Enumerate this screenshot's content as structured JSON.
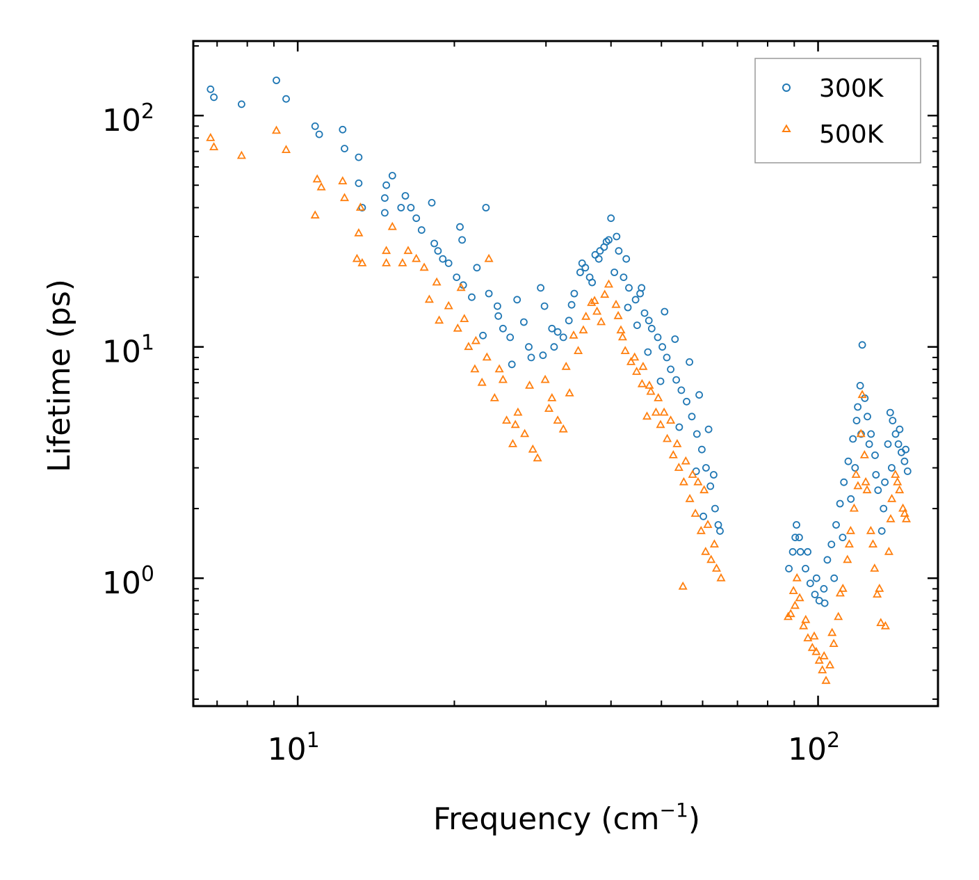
{
  "chart_data": {
    "type": "scatter",
    "title": "",
    "xlabel": "Frequency (cm",
    "xlabel_sup": "−1",
    "xlabel_end": ")",
    "ylabel": "Lifetime (ps)",
    "xscale": "log",
    "yscale": "log",
    "xlim": [
      6.3,
      170
    ],
    "ylim": [
      0.28,
      210
    ],
    "x_ticks": [
      {
        "value": 10,
        "base": "10",
        "exp": "1"
      },
      {
        "value": 100,
        "base": "10",
        "exp": "2"
      }
    ],
    "y_ticks": [
      {
        "value": 1,
        "base": "10",
        "exp": "0"
      },
      {
        "value": 10,
        "base": "10",
        "exp": "1"
      },
      {
        "value": 100,
        "base": "10",
        "exp": "2"
      }
    ],
    "legend_position": "top-right",
    "series": [
      {
        "name": "300K",
        "marker": "circle",
        "color": "#1f77b4",
        "points": [
          [
            6.8,
            130
          ],
          [
            6.9,
            120
          ],
          [
            7.8,
            112
          ],
          [
            9.1,
            142
          ],
          [
            9.5,
            118
          ],
          [
            10.8,
            90
          ],
          [
            11.0,
            83
          ],
          [
            12.2,
            87
          ],
          [
            12.3,
            72
          ],
          [
            13.1,
            66
          ],
          [
            13.1,
            51
          ],
          [
            13.3,
            40
          ],
          [
            14.8,
            50
          ],
          [
            15.2,
            55
          ],
          [
            14.7,
            44
          ],
          [
            14.7,
            38
          ],
          [
            15.8,
            40
          ],
          [
            16.1,
            45
          ],
          [
            16.5,
            40
          ],
          [
            16.9,
            36
          ],
          [
            17.3,
            32
          ],
          [
            18.1,
            42
          ],
          [
            18.3,
            28
          ],
          [
            18.6,
            26
          ],
          [
            19.0,
            24
          ],
          [
            19.5,
            23
          ],
          [
            20.2,
            20
          ],
          [
            20.5,
            33
          ],
          [
            20.7,
            29
          ],
          [
            22.1,
            22
          ],
          [
            23.0,
            40
          ],
          [
            23.3,
            17
          ],
          [
            24.2,
            15
          ],
          [
            24.8,
            12
          ],
          [
            25.6,
            11
          ],
          [
            26.4,
            16
          ],
          [
            27.8,
            10
          ],
          [
            28.1,
            9
          ],
          [
            29.3,
            18
          ],
          [
            29.8,
            15
          ],
          [
            30.8,
            12
          ],
          [
            31.1,
            10
          ],
          [
            32.4,
            11
          ],
          [
            33.2,
            13
          ],
          [
            34.0,
            17
          ],
          [
            34.9,
            21
          ],
          [
            35.7,
            22
          ],
          [
            36.4,
            20
          ],
          [
            37.3,
            25
          ],
          [
            37.9,
            24
          ],
          [
            38.8,
            27
          ],
          [
            39.6,
            29
          ],
          [
            40.0,
            36
          ],
          [
            41.0,
            30
          ],
          [
            41.4,
            26
          ],
          [
            42.3,
            20
          ],
          [
            43.3,
            18
          ],
          [
            44.6,
            16
          ],
          [
            45.5,
            17
          ],
          [
            46.4,
            14
          ],
          [
            47.3,
            13
          ],
          [
            47.9,
            12
          ],
          [
            49.2,
            11
          ],
          [
            50.2,
            10
          ],
          [
            51.2,
            9
          ],
          [
            52.1,
            8
          ],
          [
            53.4,
            7.2
          ],
          [
            54.6,
            6.5
          ],
          [
            55.9,
            5.8
          ],
          [
            57.2,
            5.0
          ],
          [
            58.5,
            4.2
          ],
          [
            59.8,
            3.6
          ],
          [
            60.9,
            3.0
          ],
          [
            62.1,
            2.5
          ],
          [
            63.4,
            2.0
          ],
          [
            64.3,
            1.7
          ],
          [
            64.8,
            1.6
          ],
          [
            87.9,
            1.1
          ],
          [
            89.4,
            1.3
          ],
          [
            90.4,
            1.5
          ],
          [
            90.9,
            1.7
          ],
          [
            92.5,
            1.3
          ],
          [
            94.6,
            1.1
          ],
          [
            96.6,
            0.95
          ],
          [
            98.6,
            0.85
          ],
          [
            100.5,
            0.8
          ],
          [
            102.6,
            0.9
          ],
          [
            104.2,
            1.2
          ],
          [
            106.1,
            1.4
          ],
          [
            108.3,
            1.7
          ],
          [
            110.2,
            2.1
          ],
          [
            112.1,
            2.6
          ],
          [
            114.3,
            3.2
          ],
          [
            116.7,
            4.0
          ],
          [
            118.6,
            4.8
          ],
          [
            119.2,
            5.5
          ],
          [
            120.5,
            6.8
          ],
          [
            121.6,
            10.2
          ],
          [
            123.0,
            6.0
          ],
          [
            124.4,
            5.0
          ],
          [
            126.4,
            4.2
          ],
          [
            128.7,
            3.4
          ],
          [
            130.4,
            2.4
          ],
          [
            132.6,
            1.6
          ],
          [
            134.4,
            2.6
          ],
          [
            136.2,
            3.8
          ],
          [
            137.6,
            5.2
          ],
          [
            139.1,
            4.8
          ],
          [
            140.9,
            4.2
          ],
          [
            142.7,
            3.8
          ],
          [
            144.6,
            3.5
          ],
          [
            146.6,
            3.2
          ],
          [
            148.6,
            2.9
          ],
          [
            60.2,
            1.85
          ],
          [
            58.3,
            2.9
          ],
          [
            54.1,
            4.5
          ],
          [
            49.8,
            7.1
          ],
          [
            47.1,
            9.5
          ],
          [
            44.9,
            12.4
          ],
          [
            43.1,
            14.8
          ],
          [
            36.8,
            19.0
          ],
          [
            33.6,
            15.2
          ],
          [
            31.6,
            11.6
          ],
          [
            29.6,
            9.2
          ],
          [
            27.2,
            12.8
          ],
          [
            25.8,
            8.4
          ],
          [
            24.3,
            13.6
          ],
          [
            22.7,
            11.2
          ],
          [
            21.6,
            16.4
          ],
          [
            20.8,
            18.5
          ],
          [
            39.2,
            28.5
          ],
          [
            35.2,
            23.0
          ],
          [
            38.1,
            26.0
          ],
          [
            42.8,
            24.0
          ],
          [
            40.6,
            21.0
          ],
          [
            45.8,
            18.0
          ],
          [
            50.7,
            14.2
          ],
          [
            53.1,
            10.8
          ],
          [
            56.6,
            8.6
          ],
          [
            59.1,
            6.2
          ],
          [
            61.6,
            4.4
          ],
          [
            63.0,
            2.8
          ],
          [
            92.0,
            1.5
          ],
          [
            95.5,
            1.3
          ],
          [
            99.3,
            1.0
          ],
          [
            103.0,
            0.78
          ],
          [
            107.4,
            1.0
          ],
          [
            111.5,
            1.5
          ],
          [
            115.6,
            2.2
          ],
          [
            117.8,
            3.0
          ],
          [
            121.0,
            4.2
          ],
          [
            125.4,
            3.8
          ],
          [
            129.2,
            2.8
          ],
          [
            133.6,
            2.0
          ],
          [
            138.5,
            3.0
          ],
          [
            143.5,
            4.4
          ],
          [
            147.4,
            3.6
          ]
        ]
      },
      {
        "name": "500K",
        "marker": "triangle",
        "color": "#ff7f0e",
        "points": [
          [
            6.8,
            80
          ],
          [
            6.9,
            73
          ],
          [
            7.8,
            67
          ],
          [
            9.1,
            86
          ],
          [
            9.5,
            71
          ],
          [
            10.8,
            37
          ],
          [
            10.9,
            53
          ],
          [
            11.1,
            49
          ],
          [
            12.2,
            52
          ],
          [
            12.3,
            44
          ],
          [
            13.0,
            24
          ],
          [
            13.1,
            31
          ],
          [
            13.3,
            23
          ],
          [
            13.2,
            40
          ],
          [
            14.8,
            26
          ],
          [
            14.8,
            23
          ],
          [
            15.2,
            33
          ],
          [
            15.9,
            23
          ],
          [
            16.3,
            26
          ],
          [
            16.9,
            24
          ],
          [
            17.5,
            22
          ],
          [
            17.9,
            16
          ],
          [
            18.5,
            19
          ],
          [
            18.7,
            13
          ],
          [
            19.5,
            15
          ],
          [
            20.3,
            12
          ],
          [
            20.6,
            18
          ],
          [
            21.3,
            10
          ],
          [
            21.9,
            8
          ],
          [
            22.6,
            7
          ],
          [
            23.3,
            24
          ],
          [
            23.9,
            6
          ],
          [
            24.4,
            8
          ],
          [
            25.2,
            4.8
          ],
          [
            25.9,
            3.8
          ],
          [
            26.5,
            5.2
          ],
          [
            27.3,
            4.2
          ],
          [
            28.3,
            3.6
          ],
          [
            28.9,
            3.3
          ],
          [
            29.9,
            7.2
          ],
          [
            30.8,
            6.0
          ],
          [
            31.6,
            4.8
          ],
          [
            32.4,
            4.4
          ],
          [
            33.3,
            6.3
          ],
          [
            33.9,
            11.2
          ],
          [
            34.6,
            9.6
          ],
          [
            35.8,
            13.5
          ],
          [
            36.7,
            15.5
          ],
          [
            37.6,
            14.2
          ],
          [
            38.3,
            12.8
          ],
          [
            39.6,
            18.6
          ],
          [
            40.9,
            15.2
          ],
          [
            41.8,
            11.8
          ],
          [
            42.6,
            9.6
          ],
          [
            43.7,
            8.6
          ],
          [
            44.8,
            7.8
          ],
          [
            45.9,
            6.9
          ],
          [
            46.9,
            5.0
          ],
          [
            47.7,
            6.4
          ],
          [
            48.8,
            5.2
          ],
          [
            49.8,
            4.6
          ],
          [
            51.3,
            4.0
          ],
          [
            52.7,
            3.4
          ],
          [
            54.0,
            3.0
          ],
          [
            55.2,
            2.6
          ],
          [
            56.7,
            2.2
          ],
          [
            58.1,
            1.9
          ],
          [
            59.6,
            1.6
          ],
          [
            60.8,
            1.3
          ],
          [
            62.3,
            1.2
          ],
          [
            63.8,
            1.1
          ],
          [
            65.1,
            1.0
          ],
          [
            55.0,
            0.92
          ],
          [
            87.6,
            0.68
          ],
          [
            88.6,
            0.7
          ],
          [
            89.7,
            0.88
          ],
          [
            91.1,
            1.0
          ],
          [
            92.2,
            0.82
          ],
          [
            93.8,
            0.62
          ],
          [
            95.6,
            0.55
          ],
          [
            97.5,
            0.5
          ],
          [
            99.2,
            0.48
          ],
          [
            100.5,
            0.44
          ],
          [
            101.9,
            0.4
          ],
          [
            103.6,
            0.36
          ],
          [
            105.4,
            0.42
          ],
          [
            107.2,
            0.52
          ],
          [
            109.4,
            0.68
          ],
          [
            111.6,
            0.9
          ],
          [
            113.9,
            1.2
          ],
          [
            115.5,
            1.6
          ],
          [
            117.3,
            2.0
          ],
          [
            119.3,
            2.5
          ],
          [
            120.9,
            4.2
          ],
          [
            121.6,
            6.2
          ],
          [
            122.8,
            3.4
          ],
          [
            124.2,
            2.4
          ],
          [
            126.3,
            1.6
          ],
          [
            128.4,
            1.1
          ],
          [
            129.9,
            0.85
          ],
          [
            132.0,
            0.64
          ],
          [
            134.7,
            0.62
          ],
          [
            136.8,
            1.3
          ],
          [
            138.6,
            2.2
          ],
          [
            140.8,
            2.8
          ],
          [
            143.4,
            2.4
          ],
          [
            145.6,
            2.0
          ],
          [
            147.8,
            1.8
          ],
          [
            60.4,
            2.4
          ],
          [
            57.4,
            2.8
          ],
          [
            53.6,
            3.8
          ],
          [
            50.6,
            5.2
          ],
          [
            47.4,
            6.8
          ],
          [
            44.4,
            9.0
          ],
          [
            42.1,
            11.0
          ],
          [
            38.9,
            16.8
          ],
          [
            35.4,
            11.8
          ],
          [
            32.8,
            8.2
          ],
          [
            30.4,
            5.4
          ],
          [
            27.9,
            6.8
          ],
          [
            26.2,
            4.6
          ],
          [
            24.8,
            7.2
          ],
          [
            23.1,
            9.0
          ],
          [
            22.0,
            10.6
          ],
          [
            20.9,
            13.2
          ],
          [
            37.2,
            15.8
          ],
          [
            41.3,
            13.6
          ],
          [
            46.1,
            8.2
          ],
          [
            49.3,
            6.0
          ],
          [
            52.1,
            4.8
          ],
          [
            55.7,
            3.2
          ],
          [
            58.8,
            2.6
          ],
          [
            61.4,
            1.7
          ],
          [
            63.2,
            1.4
          ],
          [
            90.3,
            0.76
          ],
          [
            94.7,
            0.66
          ],
          [
            98.3,
            0.56
          ],
          [
            102.7,
            0.46
          ],
          [
            106.4,
            0.58
          ],
          [
            110.3,
            0.86
          ],
          [
            114.8,
            1.4
          ],
          [
            118.3,
            2.8
          ],
          [
            123.5,
            2.6
          ],
          [
            127.5,
            1.4
          ],
          [
            131.2,
            0.9
          ],
          [
            137.9,
            1.8
          ],
          [
            142.1,
            2.6
          ],
          [
            146.7,
            1.9
          ]
        ]
      }
    ]
  }
}
